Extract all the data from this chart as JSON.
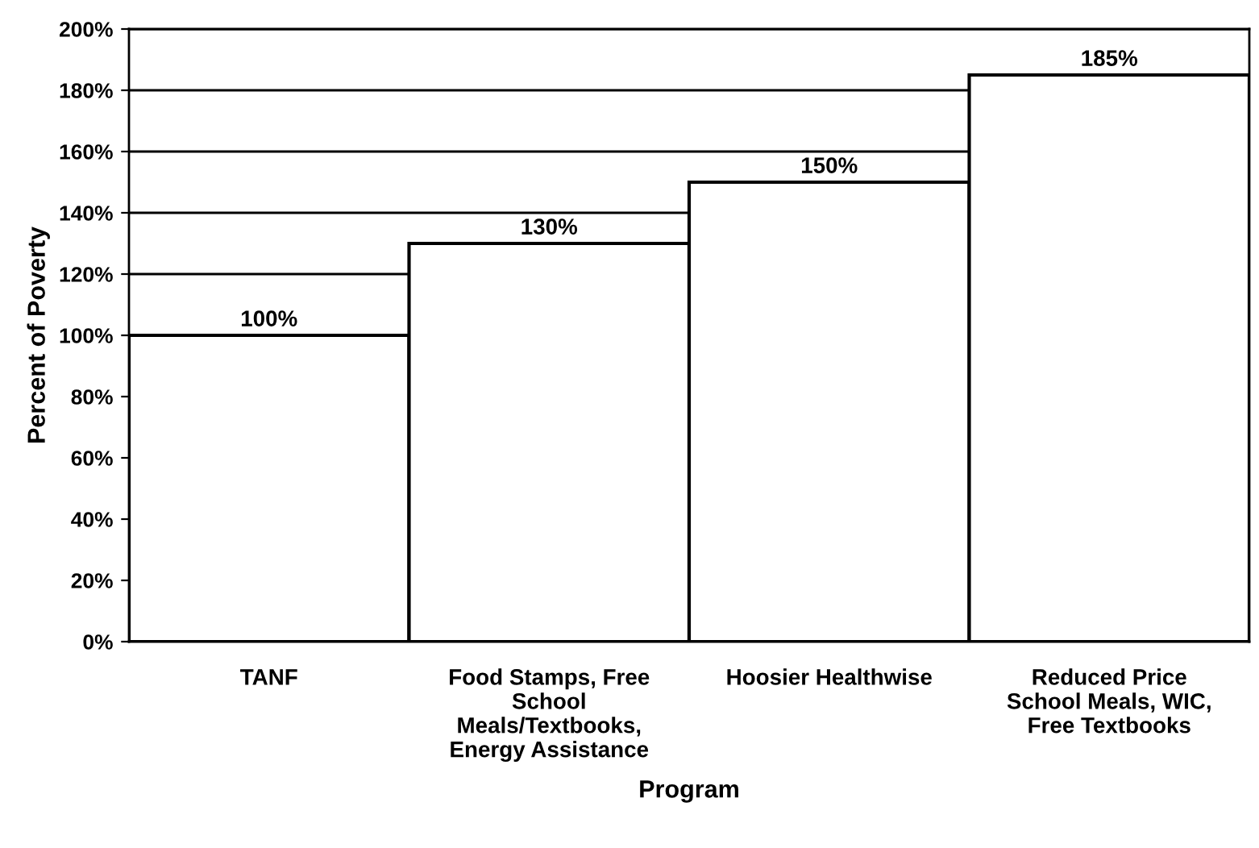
{
  "chart_data": {
    "type": "bar",
    "xlabel": "Program",
    "ylabel": "Percent of Poverty",
    "categories": [
      "TANF",
      "Food Stamps, Free\nSchool\nMeals/Textbooks,\nEnergy Assistance",
      "Hoosier Healthwise",
      "Reduced Price\nSchool Meals, WIC,\nFree Textbooks"
    ],
    "values": [
      100,
      130,
      150,
      185
    ],
    "color": "#ffffff",
    "value_labels": [
      "100%",
      "130%",
      "150%",
      "185%"
    ],
    "ylim": [
      0,
      200
    ],
    "yticks": [
      {
        "value": 0,
        "label": "0%"
      },
      {
        "value": 20,
        "label": "20%"
      },
      {
        "value": 40,
        "label": "40%"
      },
      {
        "value": 60,
        "label": "60%"
      },
      {
        "value": 80,
        "label": "80%"
      },
      {
        "value": 100,
        "label": "100%"
      },
      {
        "value": 120,
        "label": "120%"
      },
      {
        "value": 140,
        "label": "140%"
      },
      {
        "value": 160,
        "label": "160%"
      },
      {
        "value": 180,
        "label": "180%"
      },
      {
        "value": 200,
        "label": "200%"
      }
    ],
    "grid": "y",
    "legend": false
  }
}
